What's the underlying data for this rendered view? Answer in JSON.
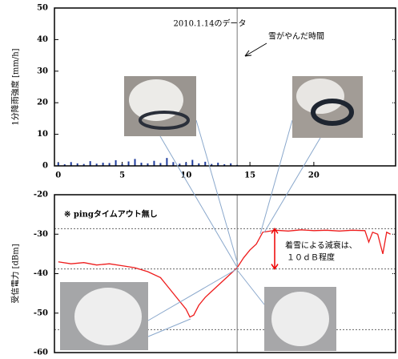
{
  "chart_data": [
    {
      "type": "bar",
      "title": "2010.1.14のデータ",
      "y_label": "1分降雨強度 [mm/h]",
      "x": [
        0,
        0.5,
        1,
        1.5,
        2,
        2.5,
        3,
        3.5,
        4,
        4.5,
        5,
        5.5,
        6,
        6.5,
        7,
        7.5,
        8,
        8.5,
        9,
        9.5,
        10,
        10.5,
        11,
        11.5,
        12,
        12.5,
        13,
        13.5,
        14
      ],
      "values": [
        1,
        0.5,
        1.2,
        0.8,
        0.6,
        1.5,
        0.7,
        1,
        0.9,
        1.8,
        0.6,
        1.4,
        2.2,
        1,
        0.8,
        1.6,
        0.9,
        2.5,
        1.2,
        0.7,
        1.1,
        1.9,
        0.8,
        1.3,
        0.6,
        1,
        0.5,
        0.8,
        0.3
      ],
      "color": "#1f3c9c",
      "xlim": [
        -0.3,
        26.4
      ],
      "xticks": [
        0,
        5,
        10,
        15,
        20
      ],
      "ylim": [
        0,
        50
      ],
      "yticks": [
        0,
        10,
        20,
        30,
        40,
        50
      ],
      "vline": 14,
      "annotations": [
        "雪がやんだ時間"
      ]
    },
    {
      "type": "line",
      "y_label": "受信電力 [dBm]",
      "x": [
        0,
        1,
        2,
        3,
        4,
        5,
        6,
        7,
        8,
        8.5,
        9,
        9.5,
        10,
        10.3,
        10.6,
        11,
        11.5,
        12,
        12.5,
        13,
        13.5,
        14,
        14.5,
        15,
        15.5,
        16,
        17,
        18,
        19,
        20,
        21,
        22,
        23,
        24,
        24.3,
        24.6,
        25,
        25.4,
        25.7,
        26
      ],
      "values": [
        -37,
        -37.5,
        -37.2,
        -37.8,
        -37.5,
        -38,
        -38.5,
        -39.5,
        -41,
        -43,
        -45,
        -47,
        -49,
        -51,
        -50.5,
        -48,
        -46,
        -44.5,
        -43,
        -41.5,
        -40,
        -38.5,
        -36,
        -34,
        -32.5,
        -29.5,
        -29,
        -29.2,
        -28.9,
        -29.1,
        -29,
        -29.2,
        -29,
        -29.1,
        -32,
        -29.5,
        -30,
        -35,
        -29.5,
        -30
      ],
      "color": "#ee1c1c",
      "xlim": [
        -0.3,
        26.4
      ],
      "ylim": [
        -60,
        -20
      ],
      "yticks": [
        -60,
        -50,
        -40,
        -30,
        -20
      ],
      "vline": 14,
      "reference_lines": [
        -28.6,
        -38.8,
        -54.2
      ],
      "annotations": [
        "※ pingタイムアウト無し",
        "着雪による減衰は、",
        "１０ｄＢ程度"
      ]
    }
  ]
}
